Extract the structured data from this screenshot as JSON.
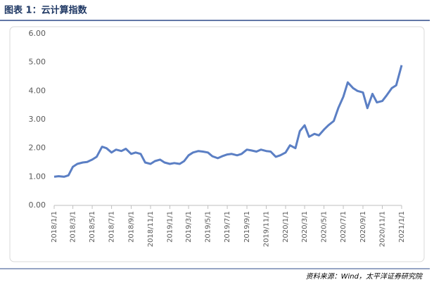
{
  "header": {
    "title": "图表 1：云计算指数"
  },
  "chart_data": {
    "type": "line",
    "x": [
      "2018/1/1",
      "2018/1/15",
      "2018/2/1",
      "2018/2/15",
      "2018/3/1",
      "2018/3/15",
      "2018/4/1",
      "2018/4/15",
      "2018/5/1",
      "2018/5/15",
      "2018/6/1",
      "2018/6/15",
      "2018/7/1",
      "2018/7/15",
      "2018/8/1",
      "2018/8/15",
      "2018/9/1",
      "2018/9/15",
      "2018/10/1",
      "2018/10/15",
      "2018/11/1",
      "2018/11/15",
      "2018/12/1",
      "2018/12/15",
      "2019/1/1",
      "2019/1/15",
      "2019/2/1",
      "2019/2/15",
      "2019/3/1",
      "2019/3/15",
      "2019/4/1",
      "2019/4/15",
      "2019/5/1",
      "2019/5/15",
      "2019/6/1",
      "2019/6/15",
      "2019/7/1",
      "2019/7/15",
      "2019/8/1",
      "2019/8/15",
      "2019/9/1",
      "2019/9/15",
      "2019/10/1",
      "2019/10/15",
      "2019/11/1",
      "2019/11/15",
      "2019/12/1",
      "2019/12/15",
      "2020/1/1",
      "2020/1/15",
      "2020/2/1",
      "2020/2/15",
      "2020/3/1",
      "2020/3/15",
      "2020/4/1",
      "2020/4/15",
      "2020/5/1",
      "2020/5/15",
      "2020/6/1",
      "2020/6/15",
      "2020/7/1",
      "2020/7/15",
      "2020/8/1",
      "2020/8/15",
      "2020/9/1",
      "2020/9/15",
      "2020/10/1",
      "2020/10/15",
      "2020/11/1",
      "2020/11/15",
      "2020/12/1",
      "2020/12/15",
      "2021/1/1"
    ],
    "series": [
      {
        "color": "#5b7fc4",
        "values": [
          1.0,
          1.02,
          1.0,
          1.05,
          1.35,
          1.45,
          1.5,
          1.52,
          1.6,
          1.7,
          2.05,
          2.0,
          1.85,
          1.95,
          1.9,
          1.98,
          1.8,
          1.85,
          1.8,
          1.5,
          1.45,
          1.55,
          1.6,
          1.5,
          1.45,
          1.48,
          1.45,
          1.55,
          1.75,
          1.85,
          1.9,
          1.88,
          1.85,
          1.72,
          1.65,
          1.72,
          1.78,
          1.8,
          1.75,
          1.8,
          1.95,
          1.92,
          1.88,
          1.95,
          1.9,
          1.88,
          1.7,
          1.75,
          1.85,
          2.1,
          2.0,
          2.6,
          2.8,
          2.4,
          2.5,
          2.45,
          2.65,
          2.8,
          2.95,
          3.4,
          3.8,
          4.3,
          4.1,
          4.0,
          3.95,
          3.4,
          3.9,
          3.6,
          3.65,
          3.85,
          4.1,
          4.2,
          4.9
        ]
      }
    ],
    "xticks": [
      "2018/1/1",
      "2018/3/1",
      "2018/5/1",
      "2018/7/1",
      "2018/9/1",
      "2018/11/1",
      "2019/1/1",
      "2019/3/1",
      "2019/5/1",
      "2019/7/1",
      "2019/9/1",
      "2019/11/1",
      "2020/1/1",
      "2020/3/1",
      "2020/5/1",
      "2020/7/1",
      "2020/9/1",
      "2020/11/1",
      "2021/1/1"
    ],
    "ylim": [
      0,
      6
    ],
    "yticks": [
      {
        "value": 0,
        "label": "0.00"
      },
      {
        "value": 1,
        "label": "1.00"
      },
      {
        "value": 2,
        "label": "2.00"
      },
      {
        "value": 3,
        "label": "3.00"
      },
      {
        "value": 4,
        "label": "4.00"
      },
      {
        "value": 5,
        "label": "5.00"
      },
      {
        "value": 6,
        "label": "6.00"
      }
    ],
    "grid": false
  },
  "footer": {
    "source": "资料来源：Wind，太平洋证券研究院"
  }
}
